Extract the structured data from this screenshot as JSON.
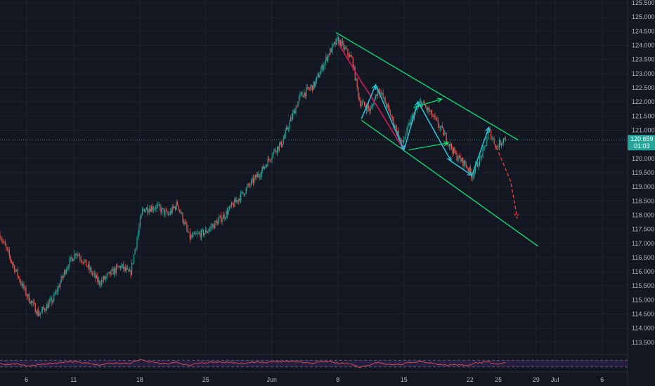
{
  "chart_data": {
    "type": "candlestick",
    "symbol": "",
    "ylim": [
      113.1,
      125.6
    ],
    "y_ticks": [
      "113.500",
      "114.000",
      "114.500",
      "115.000",
      "115.500",
      "116.000",
      "116.500",
      "117.000",
      "117.500",
      "118.000",
      "118.500",
      "119.000",
      "119.500",
      "120.000",
      "120.500",
      "121.000",
      "121.500",
      "122.000",
      "122.500",
      "123.000",
      "123.500",
      "124.000",
      "124.500",
      "125.000",
      "125.500"
    ],
    "x_ticks": [
      {
        "label": "6",
        "t": 6
      },
      {
        "label": "11",
        "t": 11
      },
      {
        "label": "18",
        "t": 18
      },
      {
        "label": "25",
        "t": 25
      },
      {
        "label": "Jun",
        "t": 32
      },
      {
        "label": "8",
        "t": 39
      },
      {
        "label": "15",
        "t": 46
      },
      {
        "label": "22",
        "t": 53
      },
      {
        "label": "25",
        "t": 56
      },
      {
        "label": "29",
        "t": 60
      },
      {
        "label": "Jul",
        "t": 62
      },
      {
        "label": "6",
        "t": 67
      }
    ],
    "x_range": [
      3.2,
      72.6
    ],
    "price_path": [
      [
        3.2,
        117.3
      ],
      [
        4.5,
        116.3
      ],
      [
        6.0,
        115.2
      ],
      [
        7.3,
        114.5
      ],
      [
        8.8,
        115.0
      ],
      [
        10.3,
        116.2
      ],
      [
        11.3,
        116.7
      ],
      [
        12.2,
        116.3
      ],
      [
        13.7,
        115.6
      ],
      [
        15.2,
        116.0
      ],
      [
        16.0,
        116.2
      ],
      [
        17.0,
        115.9
      ],
      [
        18.3,
        118.2
      ],
      [
        19.8,
        118.3
      ],
      [
        21.0,
        118.0
      ],
      [
        22.0,
        118.4
      ],
      [
        23.3,
        117.2
      ],
      [
        25.0,
        117.4
      ],
      [
        27.0,
        118.0
      ],
      [
        29.0,
        118.8
      ],
      [
        31.0,
        119.6
      ],
      [
        32.3,
        120.3
      ],
      [
        33.0,
        120.5
      ],
      [
        35.0,
        122.2
      ],
      [
        36.5,
        122.6
      ],
      [
        38.0,
        123.7
      ],
      [
        39.0,
        124.2
      ],
      [
        40.5,
        123.5
      ],
      [
        41.3,
        122.0
      ],
      [
        42.5,
        121.7
      ],
      [
        43.3,
        122.5
      ],
      [
        44.5,
        121.6
      ],
      [
        45.8,
        120.5
      ],
      [
        46.8,
        121.4
      ],
      [
        47.8,
        122.0
      ],
      [
        48.8,
        121.6
      ],
      [
        50.0,
        121.0
      ],
      [
        51.5,
        120.1
      ],
      [
        52.5,
        119.8
      ],
      [
        53.2,
        119.4
      ],
      [
        54.5,
        120.3
      ],
      [
        55.0,
        121.0
      ],
      [
        55.8,
        120.4
      ],
      [
        56.8,
        120.8
      ]
    ],
    "current_price": {
      "value": 120.659,
      "label": "120.659",
      "countdown": "01:03"
    },
    "trendlines": [
      {
        "name": "channel-upper",
        "color": "#00e676",
        "from": [
          38.8,
          124.45
        ],
        "to": [
          58.1,
          120.65
        ]
      },
      {
        "name": "channel-lower",
        "color": "#00e676",
        "from": [
          41.5,
          121.35
        ],
        "to": [
          60.2,
          116.9
        ]
      }
    ],
    "patterns": {
      "red_wave": {
        "color": "#c2185b",
        "points": [
          [
            39.0,
            124.1
          ],
          [
            41.5,
            122.7
          ],
          [
            42.5,
            122.2
          ],
          [
            46.0,
            120.3
          ]
        ]
      },
      "cyan_zigzag": {
        "color": "#26c6da",
        "points": [
          [
            41.5,
            121.4
          ],
          [
            43.0,
            122.6
          ],
          [
            46.0,
            120.3
          ],
          [
            47.5,
            122.0
          ],
          [
            51.0,
            119.9
          ],
          [
            53.2,
            119.4
          ],
          [
            55.0,
            121.1
          ]
        ]
      },
      "green_segments": [
        {
          "color": "#00e676",
          "from": [
            47.0,
            121.8
          ],
          "to": [
            50.0,
            122.1
          ]
        },
        {
          "color": "#00e676",
          "from": [
            46.5,
            120.3
          ],
          "to": [
            50.7,
            120.55
          ]
        }
      ],
      "forecast": {
        "color": "#e53935",
        "points": [
          [
            55.8,
            120.4
          ],
          [
            57.3,
            119.2
          ],
          [
            58.0,
            117.9
          ]
        ]
      }
    },
    "rsi_levels": [
      70,
      30
    ],
    "grid": true,
    "legend": "none"
  }
}
